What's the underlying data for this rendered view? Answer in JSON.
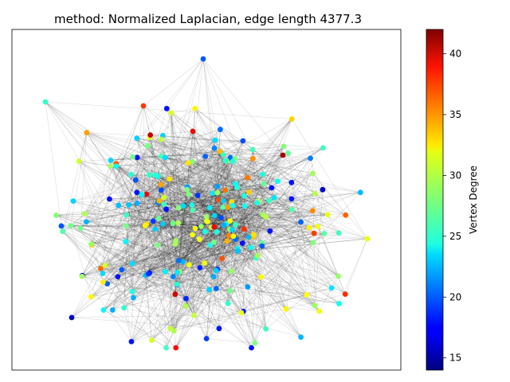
{
  "chart_data": {
    "type": "scatter",
    "subtype": "network-graph",
    "title": "method: Normalized Laplacian, edge length 4377.3",
    "colorbar": {
      "label": "Vertex Degree",
      "colormap": "jet",
      "range": [
        14,
        42
      ],
      "ticks": [
        15,
        20,
        25,
        30,
        35,
        40
      ]
    },
    "axes_visible": false,
    "grid": false,
    "xlim": [
      0,
      488
    ],
    "ylim": [
      0,
      428
    ],
    "node_count": 250,
    "edge_color": "#000000",
    "edge_opacity": 0.12,
    "highlight_nodes": [
      {
        "x": 75,
        "y": 362,
        "degree": 16
      },
      {
        "x": 240,
        "y": 37,
        "degree": 20
      },
      {
        "x": 42,
        "y": 91,
        "degree": 26
      },
      {
        "x": 305,
        "y": 394,
        "degree": 28
      },
      {
        "x": 446,
        "y": 263,
        "degree": 31
      },
      {
        "x": 199,
        "y": 376,
        "degree": 30
      },
      {
        "x": 165,
        "y": 96,
        "degree": 37
      },
      {
        "x": 340,
        "y": 158,
        "degree": 41
      },
      {
        "x": 227,
        "y": 128,
        "degree": 39
      }
    ]
  }
}
